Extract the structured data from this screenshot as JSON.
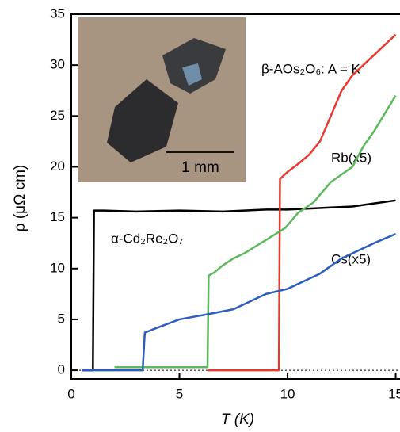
{
  "chart_data": {
    "type": "line",
    "xlabel": "T (K)",
    "ylabel": "ρ (μΩ cm)",
    "xlim": [
      0,
      15.2
    ],
    "ylim": [
      -0.85,
      35
    ],
    "xticks": [
      0,
      5,
      10,
      15
    ],
    "yticks": [
      0,
      5,
      10,
      15,
      20,
      25,
      30,
      35
    ],
    "annotations": [
      "β-AOs₂O₆: A = K",
      "Rb(x5)",
      "Cs(x5)",
      "α-Cd₂Re₂O₇"
    ],
    "inset_scale_label": "1 mm",
    "series": [
      {
        "name": "α-Cd₂Re₂O₇",
        "color": "#000000",
        "x": [
          0.5,
          0.9,
          1.0,
          1.05,
          1.5,
          3,
          5,
          7,
          9,
          10,
          11,
          12,
          13,
          14,
          15
        ],
        "values": [
          0,
          0,
          0,
          15.7,
          15.7,
          15.6,
          15.7,
          15.6,
          15.8,
          15.8,
          15.9,
          16.0,
          16.1,
          16.4,
          16.7
        ]
      },
      {
        "name": "A = K",
        "color": "#e8382f",
        "x": [
          6.3,
          9.5,
          9.6,
          9.65,
          10,
          10.5,
          11,
          11.5,
          12,
          12.5,
          13,
          13.5,
          14,
          14.5,
          15
        ],
        "values": [
          0,
          0,
          0,
          18.8,
          19.5,
          20.3,
          21.2,
          22.5,
          25,
          27.5,
          29,
          30,
          31,
          32,
          33
        ]
      },
      {
        "name": "Rb(x5)",
        "color": "#5cb85c",
        "x": [
          2,
          4,
          6,
          6.3,
          6.35,
          6.6,
          7,
          7.5,
          8,
          9,
          9.9,
          10.5,
          11.2,
          12,
          13,
          13.5,
          14,
          15
        ],
        "values": [
          0.3,
          0.3,
          0.3,
          0.3,
          9.3,
          9.6,
          10.3,
          11,
          11.5,
          12.8,
          14,
          15.5,
          16.5,
          18.5,
          20,
          22,
          23.5,
          27
        ]
      },
      {
        "name": "Cs(x5)",
        "color": "#2f5dbf",
        "x": [
          0.5,
          2,
          3.3,
          3.4,
          4,
          5,
          6.3,
          7.5,
          9,
          10,
          11.5,
          12.5,
          14,
          15
        ],
        "values": [
          0,
          0,
          0,
          3.7,
          4.2,
          5,
          5.5,
          6,
          7.5,
          8,
          9.5,
          11,
          12.5,
          13.4
        ]
      }
    ]
  }
}
